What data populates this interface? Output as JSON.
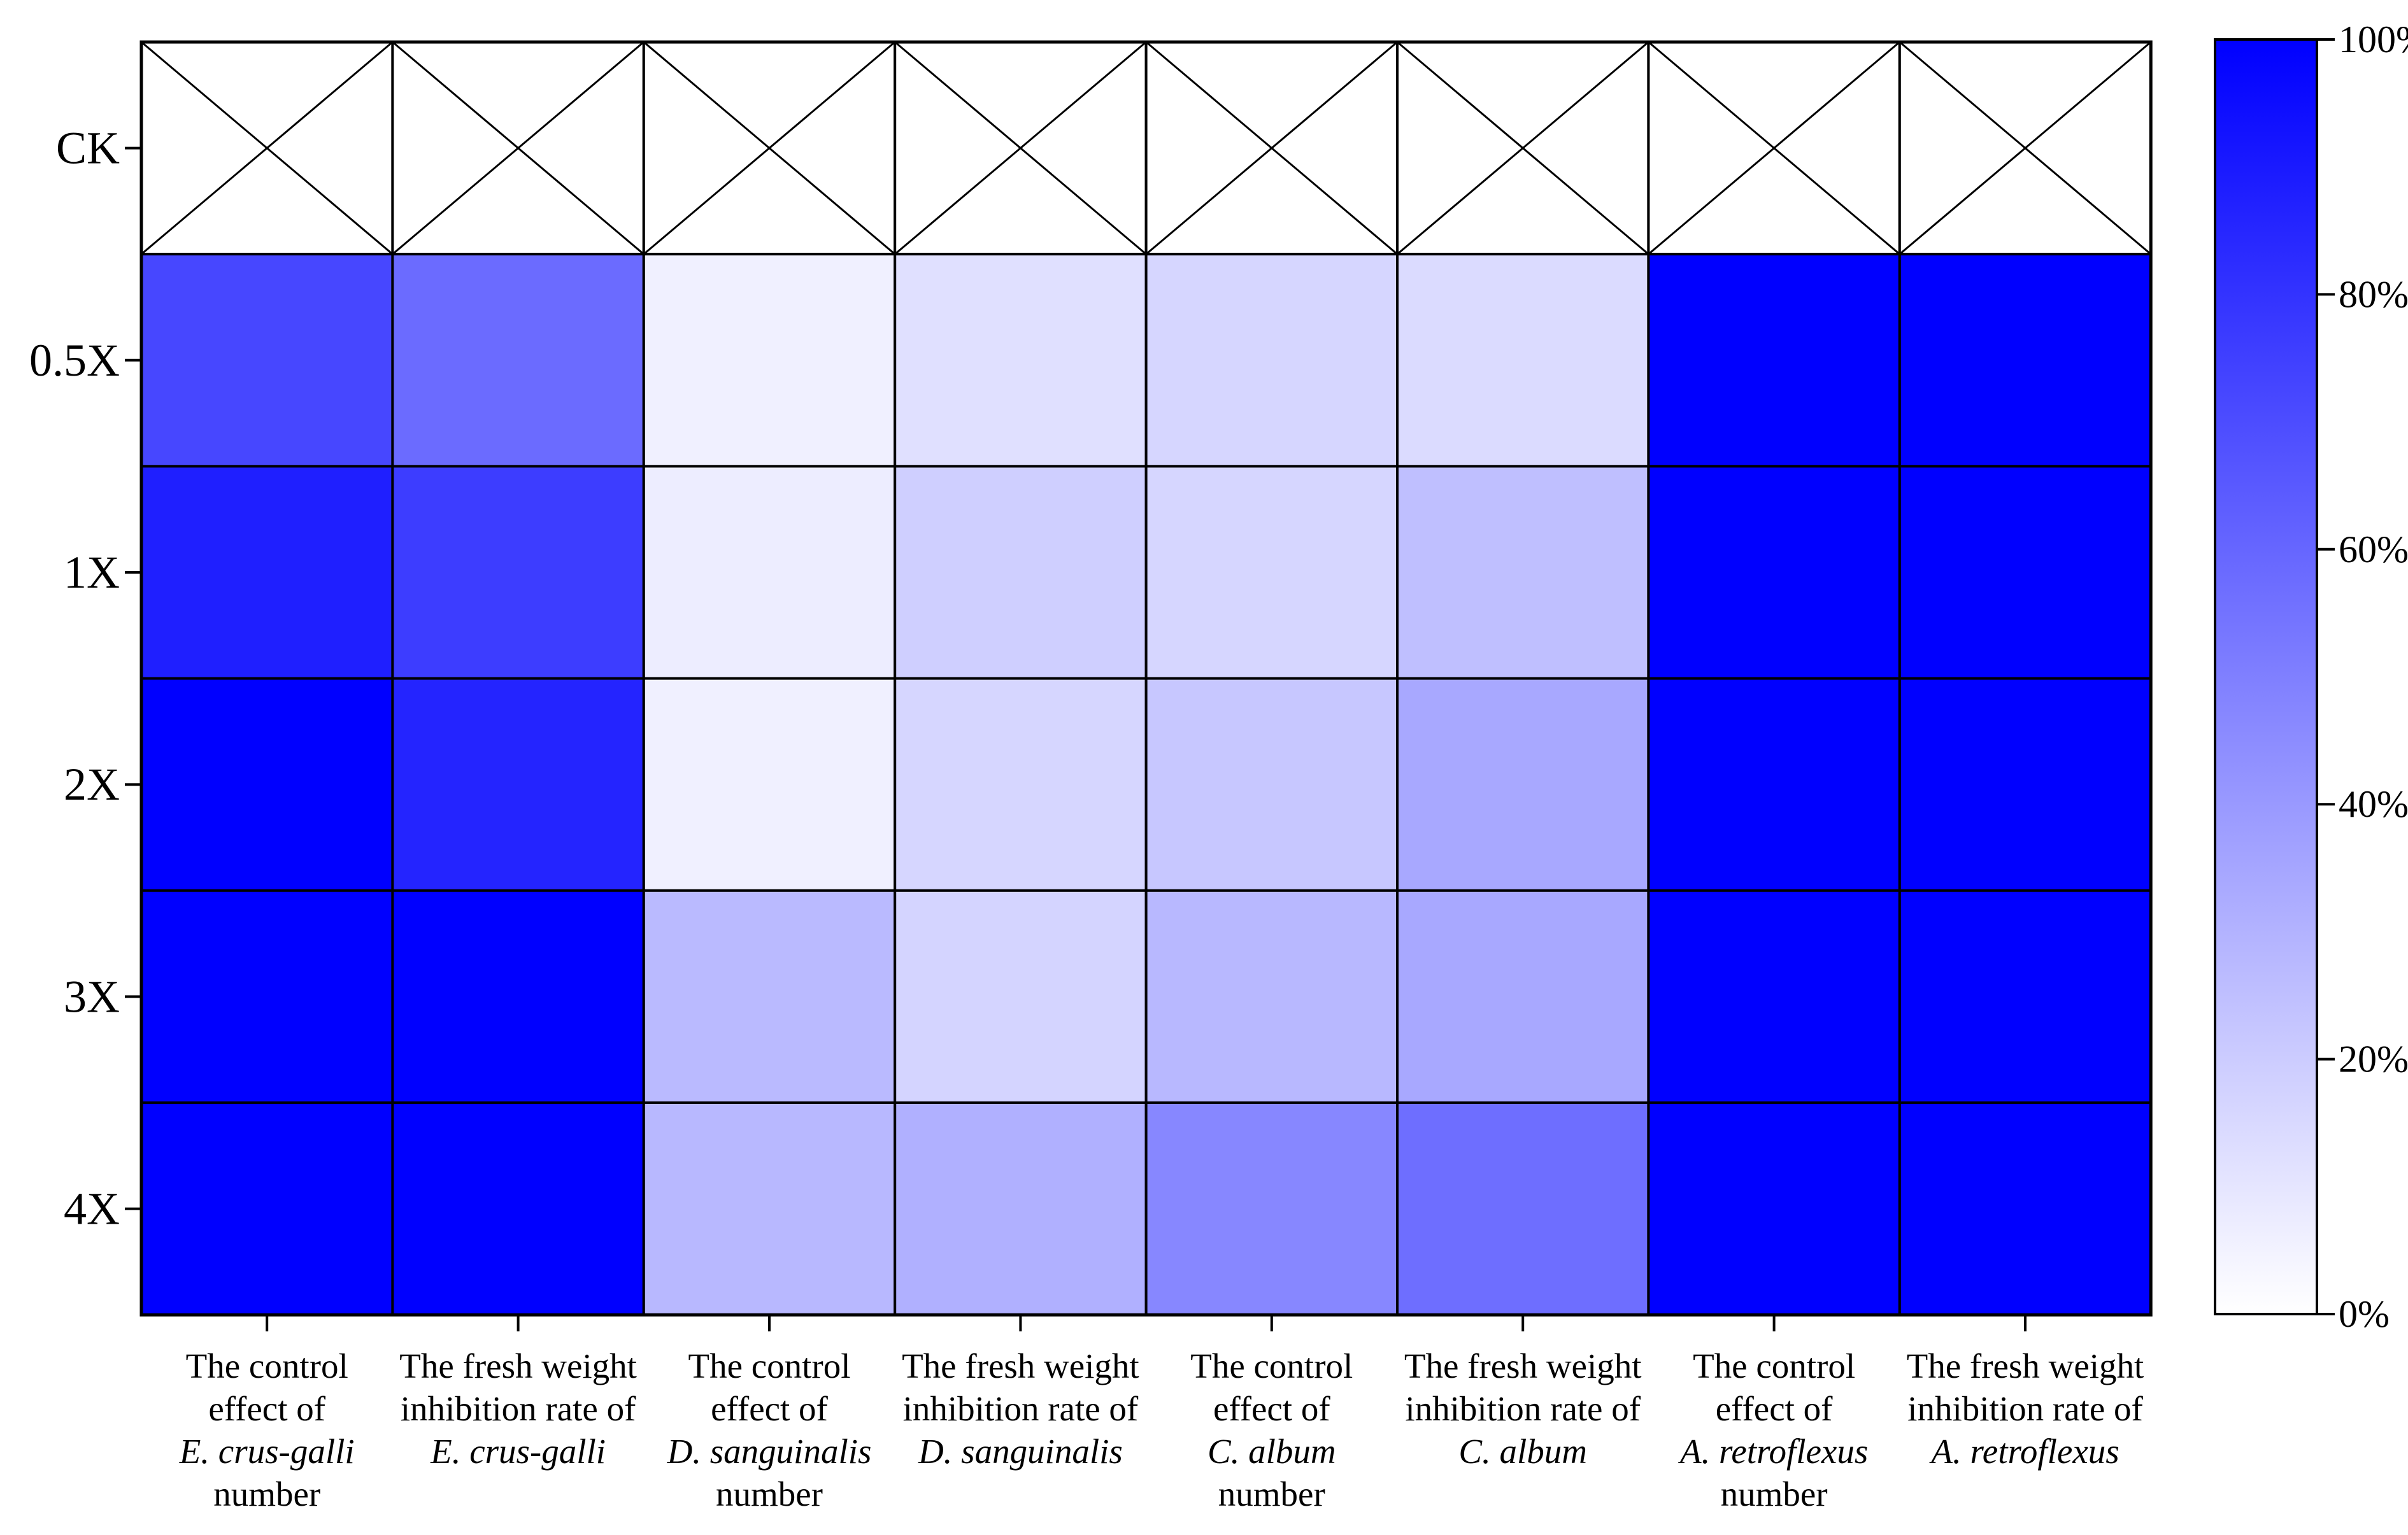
{
  "chart_data": {
    "type": "heatmap",
    "title": "",
    "rows": [
      "CK",
      "0.5X",
      "1X",
      "2X",
      "3X",
      "4X"
    ],
    "columns": [
      {
        "lines": [
          {
            "text": "The control"
          },
          {
            "text": "effect of"
          },
          {
            "text": "E. crus-galli",
            "italic": true
          },
          {
            "text": "number"
          }
        ]
      },
      {
        "lines": [
          {
            "text": "The fresh weight"
          },
          {
            "text": "inhibition rate of"
          },
          {
            "text": "E. crus-galli",
            "italic": true
          }
        ]
      },
      {
        "lines": [
          {
            "text": "The control"
          },
          {
            "text": "effect of"
          },
          {
            "text": "D. sanguinalis",
            "italic": true
          },
          {
            "text": "number"
          }
        ]
      },
      {
        "lines": [
          {
            "text": "The fresh weight"
          },
          {
            "text": "inhibition rate of"
          },
          {
            "text": "D. sanguinalis",
            "italic": true
          }
        ]
      },
      {
        "lines": [
          {
            "text": "The control"
          },
          {
            "text": "effect of"
          },
          {
            "text": "C. album",
            "italic": true
          },
          {
            "text": "number"
          }
        ]
      },
      {
        "lines": [
          {
            "text": "The fresh weight"
          },
          {
            "text": "inhibition rate of"
          },
          {
            "text": "C. album",
            "italic": true
          }
        ]
      },
      {
        "lines": [
          {
            "text": "The control"
          },
          {
            "text": "effect of"
          },
          {
            "text": "A. retroflexus",
            "italic": true
          },
          {
            "text": "number"
          }
        ]
      },
      {
        "lines": [
          {
            "text": "The fresh weight"
          },
          {
            "text": "inhibition rate of"
          },
          {
            "text": "A. retroflexus",
            "italic": true
          }
        ]
      }
    ],
    "values": [
      [
        null,
        null,
        null,
        null,
        null,
        null,
        null,
        null
      ],
      [
        72,
        58,
        6,
        12,
        16,
        14,
        100,
        100
      ],
      [
        88,
        76,
        7,
        19,
        16,
        25,
        100,
        100
      ],
      [
        100,
        86,
        6,
        16,
        22,
        34,
        100,
        100
      ],
      [
        100,
        100,
        27,
        17,
        28,
        34,
        100,
        100
      ],
      [
        100,
        100,
        28,
        31,
        47,
        57,
        100,
        100
      ]
    ],
    "null_cell_marker": "cross",
    "colorbar": {
      "min": 0,
      "max": 100,
      "min_color": "#ffffff",
      "max_color": "#0000ff",
      "ticks": [
        "0%",
        "20%",
        "40%",
        "60%",
        "80%",
        "100%"
      ]
    },
    "colors": {
      "high": "#0000ff",
      "low": "#ffffff",
      "grid": "#000000"
    }
  }
}
